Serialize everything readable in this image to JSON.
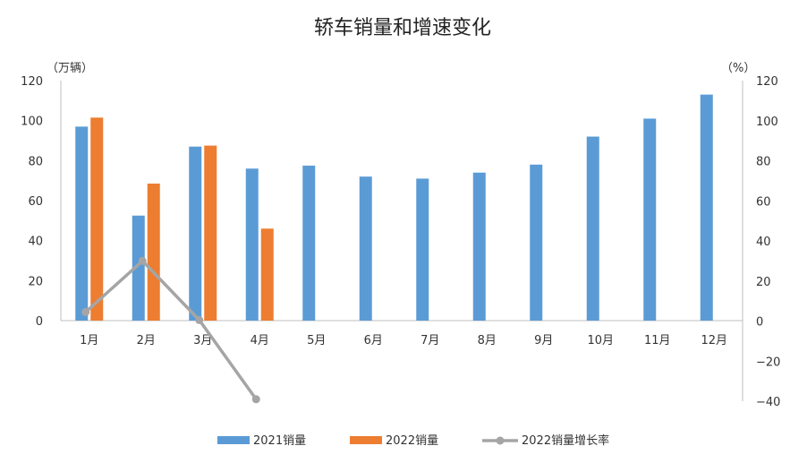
{
  "chart_data": {
    "type": "bar",
    "title": "轿车销量和增速变化",
    "left_unit": "（万辆）",
    "right_unit": "（%）",
    "categories": [
      "1月",
      "2月",
      "3月",
      "4月",
      "5月",
      "6月",
      "7月",
      "8月",
      "9月",
      "10月",
      "11月",
      "12月"
    ],
    "ylim_left": [
      0,
      120
    ],
    "yticks_left": [
      "0",
      "20",
      "40",
      "60",
      "80",
      "100",
      "120"
    ],
    "ylim_right": [
      -40,
      120
    ],
    "yticks_right": [
      "−40",
      "−20",
      "0",
      "20",
      "40",
      "60",
      "80",
      "100",
      "120"
    ],
    "series": [
      {
        "name": "2021销量",
        "type": "bar",
        "axis": "left",
        "color": "#5B9BD5",
        "values": [
          97,
          52.5,
          87,
          76,
          77.5,
          72,
          71,
          74,
          78,
          92,
          101,
          113
        ]
      },
      {
        "name": "2022销量",
        "type": "bar",
        "axis": "left",
        "color": "#ED7D31",
        "values": [
          101.5,
          68.5,
          87.5,
          46,
          null,
          null,
          null,
          null,
          null,
          null,
          null,
          null
        ]
      },
      {
        "name": "2022销量增长率",
        "type": "line",
        "axis": "right",
        "color": "#A5A5A5",
        "values": [
          4.5,
          30,
          0.5,
          -39,
          null,
          null,
          null,
          null,
          null,
          null,
          null,
          null
        ]
      }
    ],
    "legend_position": "bottom"
  }
}
